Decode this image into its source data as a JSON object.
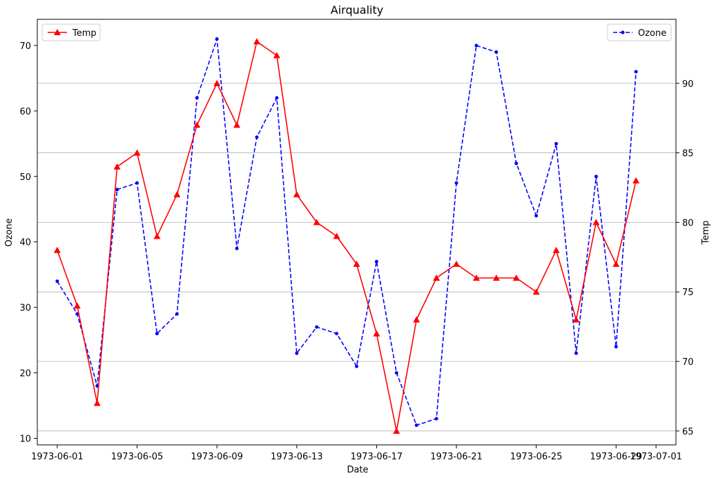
{
  "chart_data": {
    "type": "line",
    "title": "Airquality",
    "xlabel": "Date",
    "ylabel_left": "Ozone",
    "ylabel_right": "Temp",
    "x": [
      "1973-06-01",
      "1973-06-02",
      "1973-06-03",
      "1973-06-04",
      "1973-06-05",
      "1973-06-06",
      "1973-06-07",
      "1973-06-08",
      "1973-06-09",
      "1973-06-10",
      "1973-06-11",
      "1973-06-12",
      "1973-06-13",
      "1973-06-14",
      "1973-06-15",
      "1973-06-16",
      "1973-06-17",
      "1973-06-18",
      "1973-06-19",
      "1973-06-20",
      "1973-06-21",
      "1973-06-22",
      "1973-06-23",
      "1973-06-24",
      "1973-06-25",
      "1973-06-26",
      "1973-06-27",
      "1973-06-28",
      "1973-06-29",
      "1973-06-30"
    ],
    "xticks": [
      "1973-06-01",
      "1973-06-05",
      "1973-06-09",
      "1973-06-13",
      "1973-06-17",
      "1973-06-21",
      "1973-06-25",
      "1973-06-29",
      "1973-07-01"
    ],
    "xlim": [
      "1973-05-31",
      "1973-07-02"
    ],
    "left_axis": {
      "ylim": [
        9,
        74
      ],
      "ticks": [
        10,
        20,
        30,
        40,
        50,
        60,
        70
      ]
    },
    "right_axis": {
      "ylim": [
        64,
        94.6
      ],
      "ticks": [
        65,
        70,
        75,
        80,
        85,
        90
      ],
      "grid": true
    },
    "series": [
      {
        "name": "Ozone",
        "axis": "left",
        "color": "#0000ff",
        "linestyle": "dashed",
        "marker": "dot",
        "legend": "top-right",
        "values": [
          34,
          29,
          18,
          48,
          49,
          26,
          29,
          62,
          71,
          39,
          56,
          62,
          23,
          27,
          26,
          21,
          37,
          20,
          12,
          13,
          49,
          70,
          69,
          52,
          44,
          55,
          23,
          50,
          24,
          66
        ]
      },
      {
        "name": "Temp",
        "axis": "right",
        "color": "#ff0000",
        "linestyle": "solid",
        "marker": "triangle",
        "legend": "top-left",
        "values": [
          78,
          74,
          67,
          84,
          85,
          79,
          82,
          87,
          90,
          87,
          93,
          92,
          82,
          80,
          79,
          77,
          72,
          65,
          73,
          76,
          77,
          76,
          76,
          76,
          75,
          78,
          73,
          80,
          77,
          83
        ]
      }
    ]
  }
}
